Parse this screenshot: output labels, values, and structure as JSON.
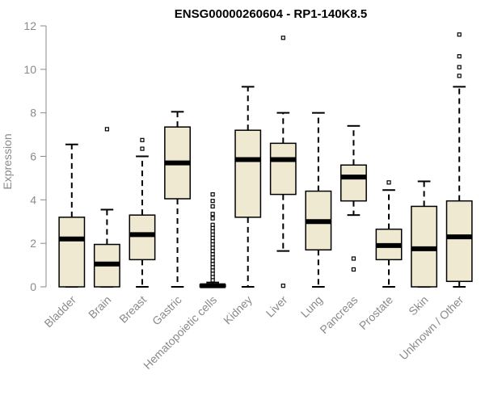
{
  "chart_data": {
    "type": "boxplot",
    "title": "ENSG00000260604 - RP1-140K8.5",
    "xlabel": "",
    "ylabel": "Expression",
    "ylim": [
      0,
      12
    ],
    "yticks": [
      0,
      2,
      4,
      6,
      8,
      10,
      12
    ],
    "grid": false,
    "legend": "none",
    "colors": {
      "box_fill": "#efe9d1",
      "box_stroke": "#000000",
      "axis": "#8a8a8a"
    },
    "categories": [
      "Bladder",
      "Brain",
      "Breast",
      "Gastric",
      "Hematopoietic cells",
      "Kidney",
      "Liver",
      "Lung",
      "Pancreas",
      "Prostate",
      "Skin",
      "Unknown / Other"
    ],
    "boxes": [
      {
        "category": "Bladder",
        "min": 0,
        "q1": 0,
        "median": 2.2,
        "q3": 3.2,
        "max": 6.55,
        "outliers": []
      },
      {
        "category": "Brain",
        "min": 0,
        "q1": 0,
        "median": 1.05,
        "q3": 1.95,
        "max": 3.55,
        "outliers": [
          7.25
        ]
      },
      {
        "category": "Breast",
        "min": 0,
        "q1": 1.25,
        "median": 2.4,
        "q3": 3.3,
        "max": 6.0,
        "outliers": [
          6.35,
          6.75
        ]
      },
      {
        "category": "Gastric",
        "min": 0,
        "q1": 4.05,
        "median": 5.7,
        "q3": 7.35,
        "max": 8.05,
        "outliers": []
      },
      {
        "category": "Hematopoietic cells",
        "min": 0,
        "q1": 0,
        "median": 0.05,
        "q3": 0.1,
        "max": 0.2,
        "outliers": [
          0.3,
          0.45,
          0.6,
          0.75,
          0.9,
          1.05,
          1.2,
          1.35,
          1.5,
          1.65,
          1.8,
          1.95,
          2.1,
          2.25,
          2.4,
          2.55,
          2.7,
          2.85,
          3.15,
          3.35,
          3.7,
          3.95,
          4.25
        ]
      },
      {
        "category": "Kidney",
        "min": 0,
        "q1": 3.2,
        "median": 5.85,
        "q3": 7.2,
        "max": 9.2,
        "outliers": []
      },
      {
        "category": "Liver",
        "min": 1.65,
        "q1": 4.25,
        "median": 5.85,
        "q3": 6.6,
        "max": 8.0,
        "outliers": [
          0.05,
          11.45
        ]
      },
      {
        "category": "Lung",
        "min": 0,
        "q1": 1.7,
        "median": 3.0,
        "q3": 4.4,
        "max": 8.0,
        "outliers": []
      },
      {
        "category": "Pancreas",
        "min": 3.3,
        "q1": 3.95,
        "median": 5.05,
        "q3": 5.6,
        "max": 7.4,
        "outliers": [
          0.8,
          1.3
        ]
      },
      {
        "category": "Prostate",
        "min": 0,
        "q1": 1.25,
        "median": 1.9,
        "q3": 2.65,
        "max": 4.45,
        "outliers": [
          4.8
        ]
      },
      {
        "category": "Skin",
        "min": 0,
        "q1": 0,
        "median": 1.75,
        "q3": 3.7,
        "max": 4.85,
        "outliers": []
      },
      {
        "category": "Unknown / Other",
        "min": 0,
        "q1": 0.25,
        "median": 2.3,
        "q3": 3.95,
        "max": 9.2,
        "outliers": [
          9.7,
          10.1,
          10.6,
          11.6
        ]
      }
    ]
  }
}
